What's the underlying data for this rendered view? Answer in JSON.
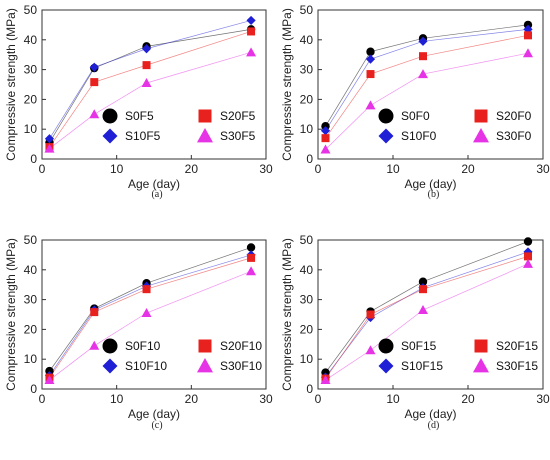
{
  "chart_data": [
    {
      "type": "line",
      "caption": "(a)",
      "xlabel": "Age (day)",
      "ylabel": "Compressive strength (MPa)",
      "xlim": [
        0,
        30
      ],
      "ylim": [
        0,
        50
      ],
      "xticks": [
        0,
        10,
        20,
        30
      ],
      "yticks": [
        0,
        10,
        20,
        30,
        40,
        50
      ],
      "grid": false,
      "legend_position": "bottom-right",
      "x": [
        1,
        7,
        14,
        28
      ],
      "series": [
        {
          "name": "S0F5",
          "marker": "circle",
          "color": "#000000",
          "values": [
            5.5,
            30.5,
            37.8,
            43.5
          ]
        },
        {
          "name": "S10F5",
          "marker": "diamond",
          "color": "#1f1fd6",
          "values": [
            6.8,
            30.8,
            37.0,
            46.5
          ]
        },
        {
          "name": "S20F5",
          "marker": "square",
          "color": "#e8201e",
          "values": [
            4.0,
            25.8,
            31.5,
            42.8
          ]
        },
        {
          "name": "S30F5",
          "marker": "triangle",
          "color": "#e633e6",
          "values": [
            3.5,
            15.0,
            25.5,
            35.8
          ]
        }
      ]
    },
    {
      "type": "line",
      "caption": "(b)",
      "xlabel": "Age (day)",
      "ylabel": "Compressive strength (MPa)",
      "xlim": [
        0,
        30
      ],
      "ylim": [
        0,
        50
      ],
      "xticks": [
        0,
        10,
        20,
        30
      ],
      "yticks": [
        0,
        10,
        20,
        30,
        40,
        50
      ],
      "grid": false,
      "legend_position": "bottom-right",
      "x": [
        1,
        7,
        14,
        28
      ],
      "series": [
        {
          "name": "S0F0",
          "marker": "circle",
          "color": "#000000",
          "values": [
            11.0,
            36.0,
            40.5,
            45.0
          ]
        },
        {
          "name": "S10F0",
          "marker": "diamond",
          "color": "#1f1fd6",
          "values": [
            9.5,
            33.5,
            39.5,
            43.5
          ]
        },
        {
          "name": "S20F0",
          "marker": "square",
          "color": "#e8201e",
          "values": [
            7.0,
            28.5,
            34.5,
            41.5
          ]
        },
        {
          "name": "S30F0",
          "marker": "triangle",
          "color": "#e633e6",
          "values": [
            3.2,
            18.0,
            28.5,
            35.5
          ]
        }
      ]
    },
    {
      "type": "line",
      "caption": "(c)",
      "xlabel": "Age (day)",
      "ylabel": "Compressive strength (MPa)",
      "xlim": [
        0,
        30
      ],
      "ylim": [
        0,
        50
      ],
      "xticks": [
        0,
        10,
        20,
        30
      ],
      "yticks": [
        0,
        10,
        20,
        30,
        40,
        50
      ],
      "grid": false,
      "legend_position": "bottom-right",
      "x": [
        1,
        7,
        14,
        28
      ],
      "series": [
        {
          "name": "S0F10",
          "marker": "circle",
          "color": "#000000",
          "values": [
            6.0,
            27.0,
            35.5,
            47.5
          ]
        },
        {
          "name": "S10F10",
          "marker": "diamond",
          "color": "#1f1fd6",
          "values": [
            4.5,
            26.5,
            34.5,
            45.0
          ]
        },
        {
          "name": "S20F10",
          "marker": "square",
          "color": "#e8201e",
          "values": [
            3.8,
            25.8,
            33.5,
            44.0
          ]
        },
        {
          "name": "S30F10",
          "marker": "triangle",
          "color": "#e633e6",
          "values": [
            3.0,
            14.5,
            25.5,
            39.5
          ]
        }
      ]
    },
    {
      "type": "line",
      "caption": "(d)",
      "xlabel": "Age (day)",
      "ylabel": "Compressive strength (MPa)",
      "xlim": [
        0,
        30
      ],
      "ylim": [
        0,
        50
      ],
      "xticks": [
        0,
        10,
        20,
        30
      ],
      "yticks": [
        0,
        10,
        20,
        30,
        40,
        50
      ],
      "grid": false,
      "legend_position": "bottom-right",
      "x": [
        1,
        7,
        14,
        28
      ],
      "series": [
        {
          "name": "S0F15",
          "marker": "circle",
          "color": "#000000",
          "values": [
            5.5,
            26.0,
            36.0,
            49.5
          ]
        },
        {
          "name": "S10F15",
          "marker": "diamond",
          "color": "#1f1fd6",
          "values": [
            4.0,
            24.0,
            34.0,
            46.0
          ]
        },
        {
          "name": "S20F15",
          "marker": "square",
          "color": "#e8201e",
          "values": [
            3.5,
            25.0,
            33.5,
            44.5
          ]
        },
        {
          "name": "S30F15",
          "marker": "triangle",
          "color": "#e633e6",
          "values": [
            3.0,
            13.0,
            26.5,
            42.0
          ]
        }
      ]
    }
  ]
}
